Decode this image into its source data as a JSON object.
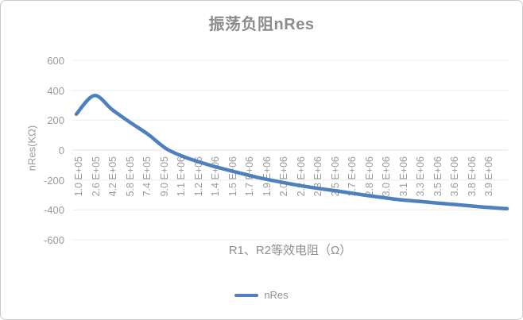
{
  "figure": {
    "background": "#ffffff",
    "border_color": "#c9c9c9"
  },
  "chart_data": {
    "type": "line",
    "title": "振荡负阻nRes",
    "xlabel": "R1、R2等效电阻（Ω）",
    "ylabel": "nRes(KΩ)",
    "x_tick_labels": [
      "1.0 E+05",
      "2.6 E+05",
      "4.2 E+05",
      "5.8 E+05",
      "7.4 E+05",
      "9.0 E+05",
      "1.1 E+06",
      "1.2 E+06",
      "1.4 E+06",
      "1.5 E+06",
      "1.7 E+06",
      "1.9 E+06",
      "2.0 E+06",
      "2.2 E+06",
      "2.3 E+06",
      "2.5 E+06",
      "2.7 E+06",
      "2.8 E+06",
      "3.0 E+06",
      "3.1 E+06",
      "3.3 E+06",
      "3.5 E+06",
      "3.6 E+06",
      "3.8 E+06",
      "3.9 E+06"
    ],
    "y_ticks": [
      600,
      400,
      200,
      0,
      -200,
      -400,
      -600
    ],
    "ylim": [
      -600,
      600
    ],
    "grid": true,
    "legend_position": "bottom",
    "series": [
      {
        "name": "nRes",
        "color": "#4E80BD",
        "values": [
          240,
          365,
          270,
          185,
          105,
          10,
          -45,
          -85,
          -120,
          -150,
          -180,
          -205,
          -228,
          -248,
          -265,
          -282,
          -300,
          -316,
          -332,
          -342,
          -353,
          -363,
          -374,
          -384,
          -392
        ]
      }
    ],
    "colors": {
      "line": "#4E80BD",
      "gridline": "#ececec",
      "zero_axis": "#e0e0e0",
      "tick_text": "#9a9a9a",
      "title_text": "#8c8c8c"
    }
  }
}
